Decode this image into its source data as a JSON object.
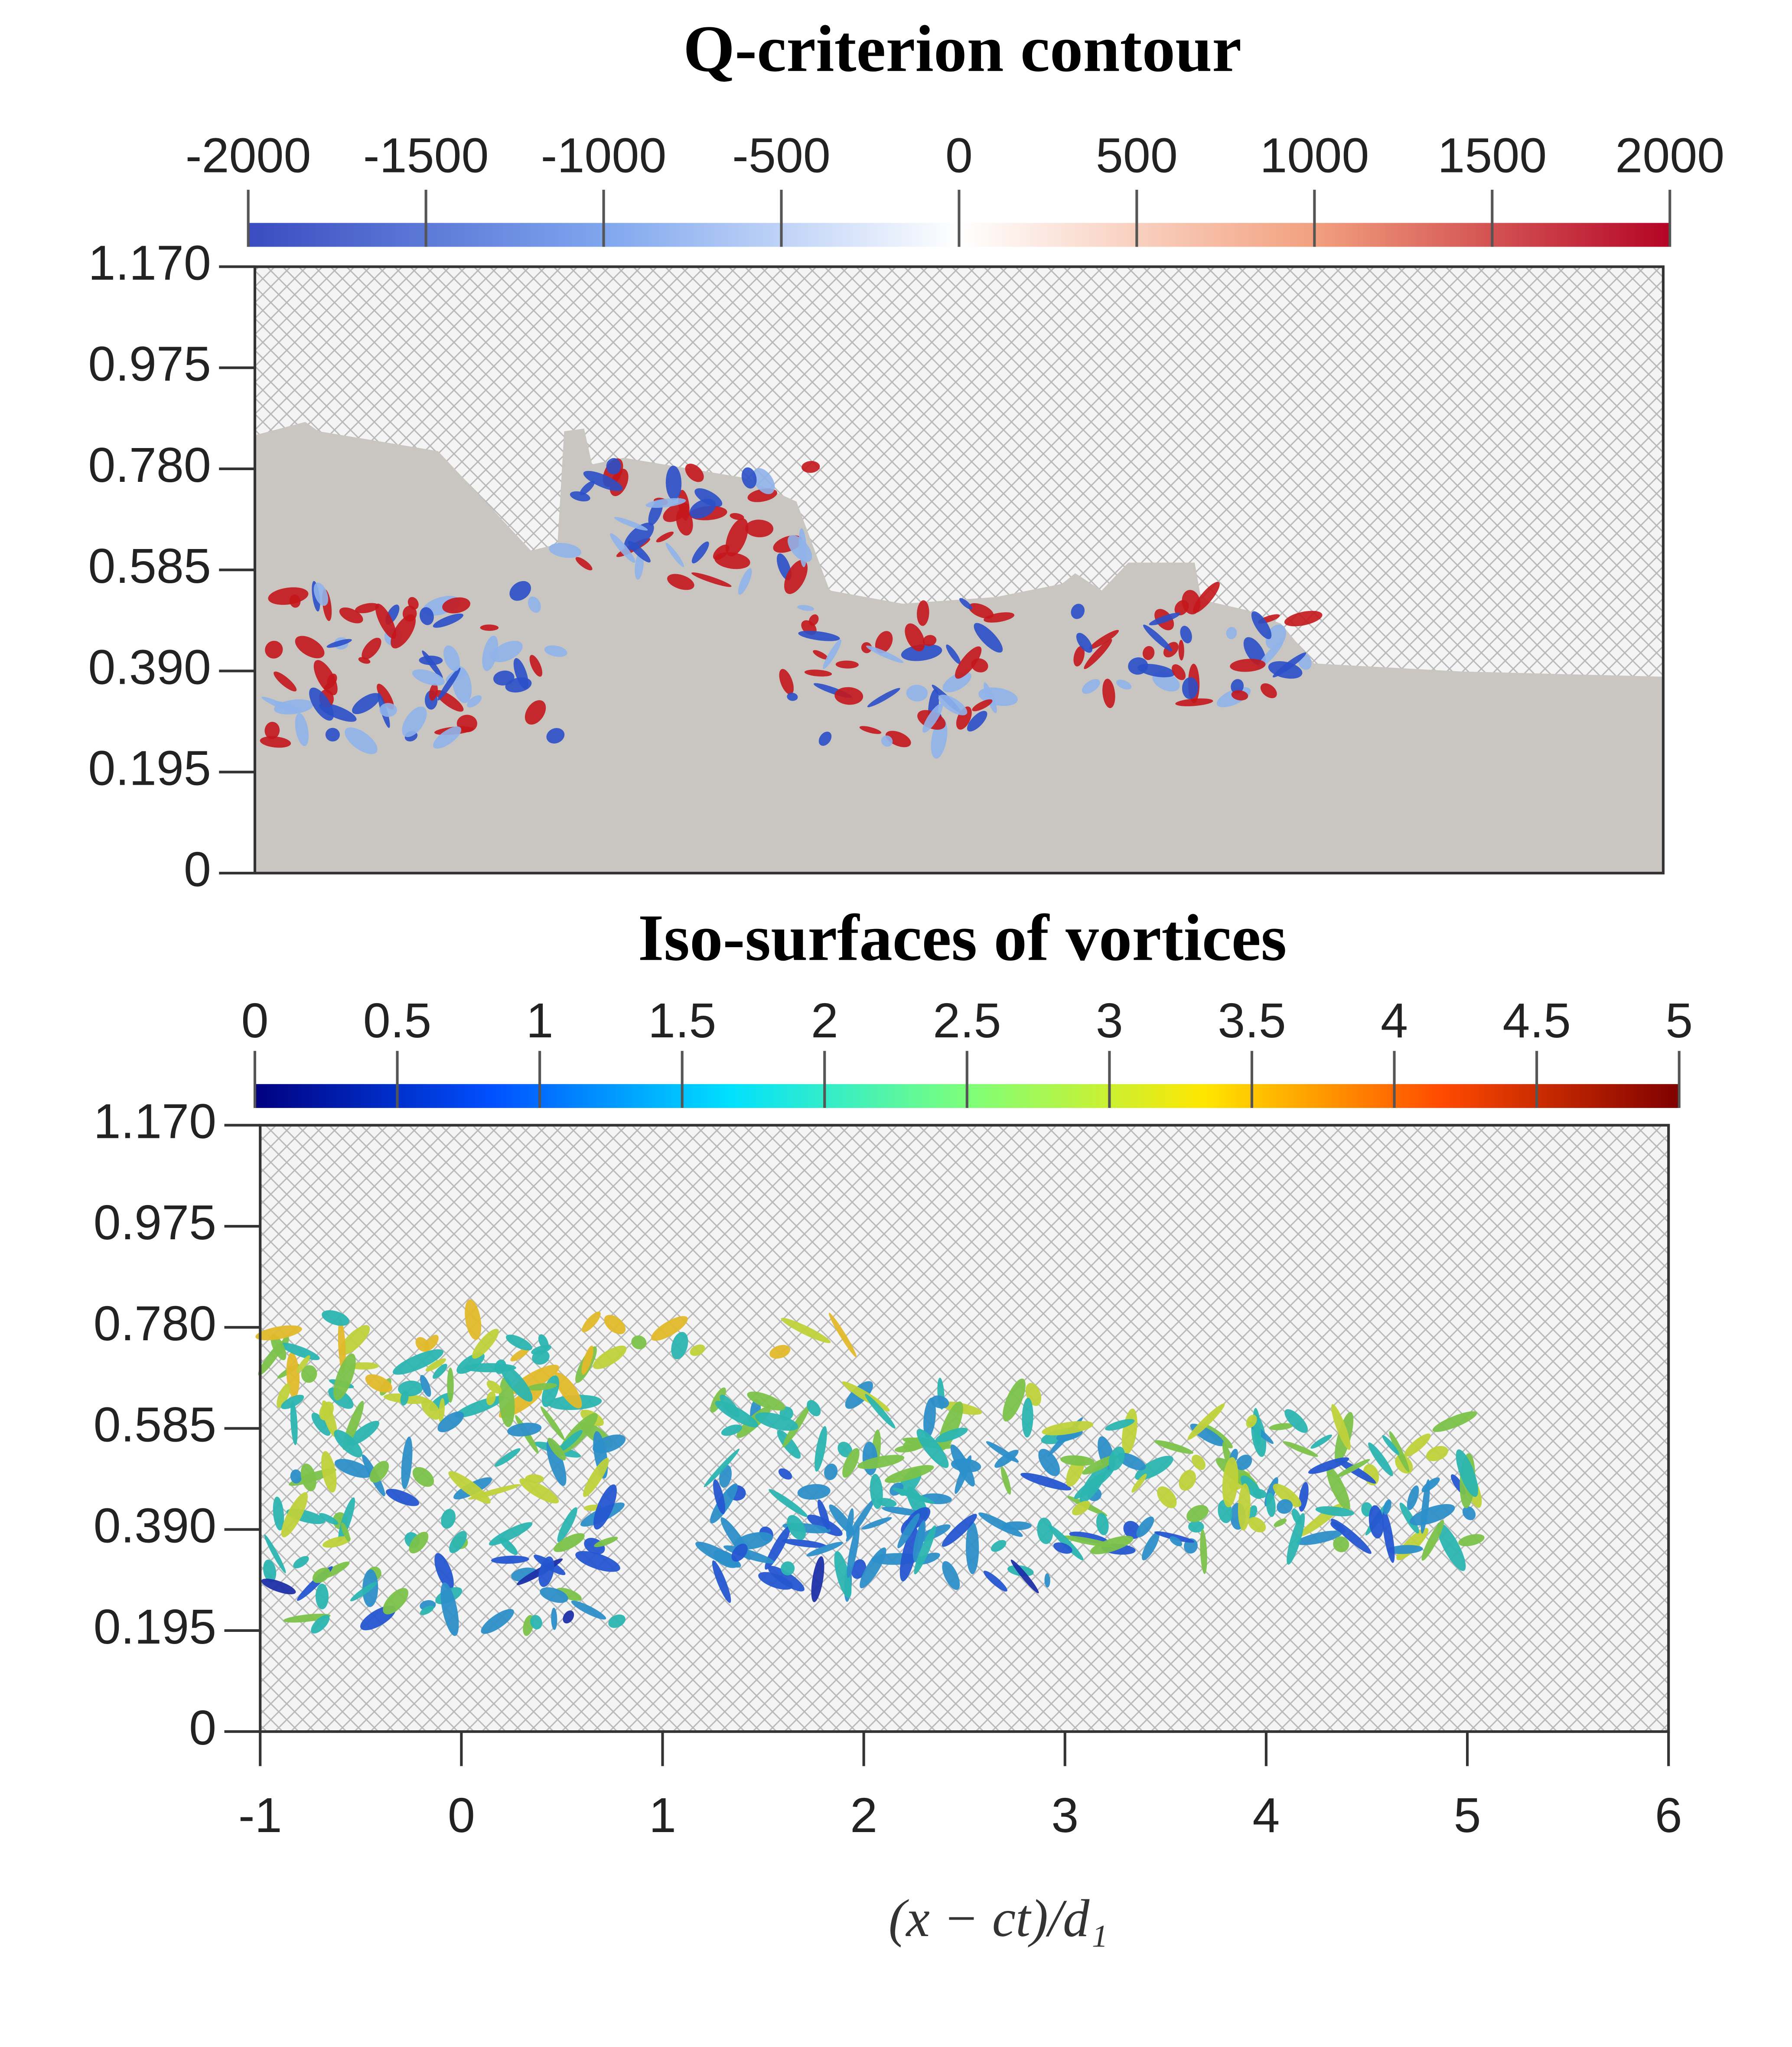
{
  "chart_data": [
    {
      "type": "contour",
      "title": "Q-criterion contour",
      "colorbar": {
        "lim": [
          -2000,
          2000
        ],
        "ticks": [
          -2000,
          -1500,
          -1000,
          -500,
          0,
          500,
          1000,
          1500,
          2000
        ],
        "colormap": [
          "#3a4cc0",
          "#7fa6ee",
          "#ffffff",
          "#f2a07f",
          "#b40426"
        ]
      },
      "ylim": [
        0,
        1.17
      ],
      "yticks": [
        0,
        0.195,
        {
          "value": 0.39,
          "label": "0.390"
        },
        0.585,
        {
          "value": 0.78,
          "label": "0.780"
        },
        0.975,
        {
          "value": 1.17,
          "label": "1.170"
        }
      ]
    },
    {
      "type": "isosurface",
      "title": "Iso-surfaces of vortices",
      "colorbar": {
        "lim": [
          0,
          5
        ],
        "ticks": [
          0,
          0.5,
          1,
          1.5,
          2,
          2.5,
          3,
          3.5,
          4,
          4.5,
          5
        ],
        "colormap": [
          "#00007f",
          "#0050ff",
          "#00e0ff",
          "#7dff7a",
          "#ffe600",
          "#ff4a00",
          "#7f0000"
        ]
      },
      "ylim": [
        0,
        1.17
      ],
      "yticks": [
        0,
        0.195,
        {
          "value": 0.39,
          "label": "0.390"
        },
        0.585,
        {
          "value": 0.78,
          "label": "0.780"
        },
        0.975,
        {
          "value": 1.17,
          "label": "1.170"
        }
      ],
      "xlim": [
        -1,
        6
      ],
      "xticks": [
        -1,
        0,
        1,
        2,
        3,
        4,
        5,
        6
      ],
      "xlabel": "(x − ct)/d₁"
    }
  ]
}
